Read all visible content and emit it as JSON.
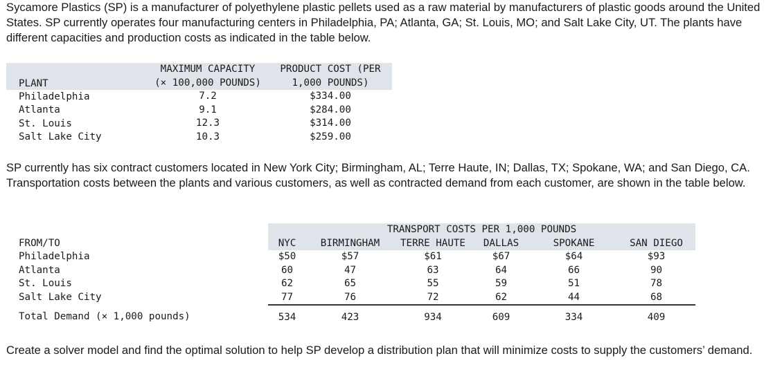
{
  "intro_paragraph": "Sycamore Plastics (SP) is a manufacturer of polyethylene plastic pellets used as a raw material by manufacturers of plastic goods around the United States. SP currently operates four manufacturing centers in Philadelphia, PA; Atlanta, GA; St. Louis, MO; and Salt Lake City, UT. The plants have different capacities and production costs as indicated in the table below.",
  "plant_table": {
    "headers": {
      "plant": "PLANT",
      "capacity_line1": "MAXIMUM CAPACITY",
      "capacity_line2": "(× 100,000 POUNDS)",
      "cost_line1": "PRODUCT COST (PER",
      "cost_line2": "1,000 POUNDS)"
    },
    "rows": [
      {
        "plant": "Philadelphia",
        "capacity": "7.2",
        "cost": "$334.00"
      },
      {
        "plant": "Atlanta",
        "capacity": "9.1",
        "cost": "$284.00"
      },
      {
        "plant": "St. Louis",
        "capacity": "12.3",
        "cost": "$314.00"
      },
      {
        "plant": "Salt Lake City",
        "capacity": "10.3",
        "cost": "$259.00"
      }
    ]
  },
  "middle_paragraph": "SP currently has six contract customers located in New York City; Birmingham, AL; Terre Haute, IN; Dallas, TX; Spokane, WA; and San Diego, CA. Transportation costs between the plants and various customers, as well as contracted demand from each customer, are shown in the table below.",
  "transport_table": {
    "band_title": "TRANSPORT COSTS PER 1,000 POUNDS",
    "from_to_label": "FROM/TO",
    "columns": [
      "NYC",
      "BIRMINGHAM",
      "TERRE HAUTE",
      "DALLAS",
      "SPOKANE",
      "SAN DIEGO"
    ],
    "rows": [
      {
        "from": "Philadelphia",
        "values": [
          "$50",
          "$57",
          "$61",
          "$67",
          "$64",
          "$93"
        ]
      },
      {
        "from": "Atlanta",
        "values": [
          "60",
          "47",
          "63",
          "64",
          "66",
          "90"
        ]
      },
      {
        "from": "St. Louis",
        "values": [
          "62",
          "65",
          "55",
          "59",
          "51",
          "78"
        ]
      },
      {
        "from": "Salt Lake City",
        "values": [
          "77",
          "76",
          "72",
          "62",
          "44",
          "68"
        ]
      }
    ],
    "demand_label": "Total Demand (× 1,000 pounds)",
    "demand": [
      "534",
      "423",
      "934",
      "609",
      "334",
      "409"
    ]
  },
  "closing_paragraph": "Create a solver model and find the optimal solution to help SP develop a distribution plan that will minimize costs to supply the customers’ demand."
}
